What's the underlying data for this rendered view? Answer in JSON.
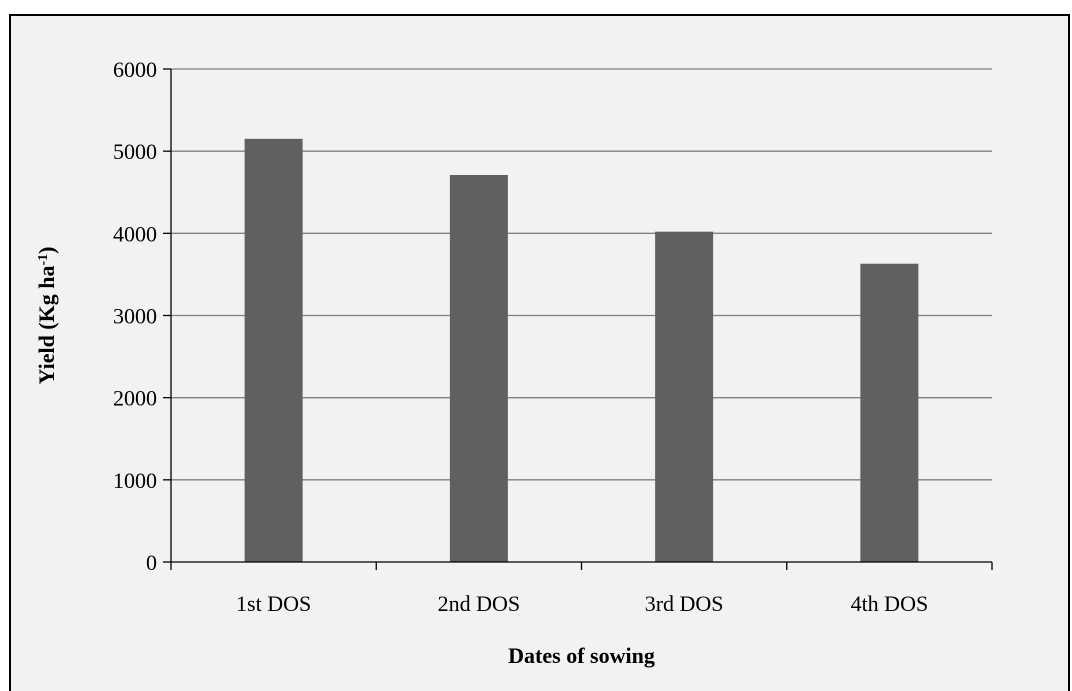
{
  "chart_data": {
    "type": "bar",
    "categories": [
      "1st DOS",
      "2nd DOS",
      "3rd DOS",
      "4th DOS"
    ],
    "values": [
      5150,
      4710,
      4020,
      3630
    ],
    "xlabel": "Dates of sowing",
    "ylabel": {
      "base": "Yield (Kg ha",
      "superscript": "-1",
      "close": ")"
    },
    "ylim": [
      0,
      6000
    ],
    "yticks": [
      0,
      1000,
      2000,
      3000,
      4000,
      5000,
      6000
    ],
    "grid": true,
    "bar_color": "#606060",
    "grid_color": "#808080",
    "background_color": "#f2f2f2"
  }
}
